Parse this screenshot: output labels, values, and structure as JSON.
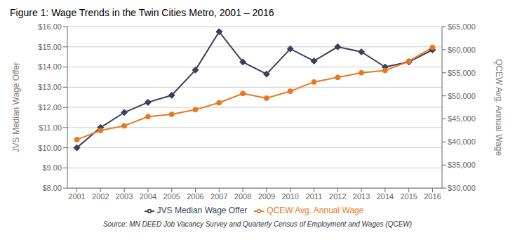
{
  "chart_data": {
    "type": "line",
    "title": "Figure 1: Wage Trends in the Twin Cities Metro, 2001 – 2016",
    "annotations": [
      "Source: MN DEED Job Vacancy Survey and Quarterly Census of Employment and Wages (QCEW)"
    ],
    "x": [
      2001,
      2002,
      2003,
      2004,
      2005,
      2006,
      2007,
      2008,
      2009,
      2010,
      2011,
      2012,
      2013,
      2014,
      2015,
      2016
    ],
    "xlim": [
      2000.6,
      2016.4
    ],
    "xticks": [
      2001,
      2002,
      2003,
      2004,
      2005,
      2006,
      2007,
      2008,
      2009,
      2010,
      2011,
      2012,
      2013,
      2014,
      2015,
      2016
    ],
    "ylabel": "JVS Median Wage Offer",
    "y2label": "QCEW Avg. Annual Wage",
    "ylim": [
      8.0,
      16.0
    ],
    "yticks": [
      {
        "value": 8.0,
        "label": "$8.00"
      },
      {
        "value": 9.0,
        "label": "$9.00"
      },
      {
        "value": 10.0,
        "label": "$10.00"
      },
      {
        "value": 11.0,
        "label": "$11.00"
      },
      {
        "value": 12.0,
        "label": "$12.00"
      },
      {
        "value": 13.0,
        "label": "$13.00"
      },
      {
        "value": 14.0,
        "label": "$14.00"
      },
      {
        "value": 15.0,
        "label": "$15.00"
      },
      {
        "value": 16.0,
        "label": "$16.00"
      }
    ],
    "y2lim": [
      30000,
      65000
    ],
    "y2ticks": [
      {
        "value": 30000,
        "label": "$30,000"
      },
      {
        "value": 35000,
        "label": "$35,000"
      },
      {
        "value": 40000,
        "label": "$40,000"
      },
      {
        "value": 45000,
        "label": "$45,000"
      },
      {
        "value": 50000,
        "label": "$50,000"
      },
      {
        "value": 55000,
        "label": "$55,000"
      },
      {
        "value": 60000,
        "label": "$60,000"
      },
      {
        "value": 65000,
        "label": "$65,000"
      }
    ],
    "grid": true,
    "legend": "bottom",
    "series": [
      {
        "name": "JVS Median Wage Offer",
        "color": "#3A3F5C",
        "marker": "diamond",
        "values": [
          10.0,
          11.0,
          11.75,
          12.25,
          12.6,
          13.85,
          15.75,
          14.25,
          13.65,
          14.9,
          14.3,
          15.0,
          14.75,
          14.0,
          14.25,
          14.85
        ]
      },
      {
        "name": "QCEW Avg. Annual Wage",
        "color": "#E87722",
        "marker": "circle",
        "axis": "y2",
        "values": [
          40500,
          42500,
          43500,
          45500,
          46000,
          47000,
          48500,
          50500,
          49500,
          51000,
          53000,
          54000,
          55000,
          55500,
          57500,
          60500
        ]
      }
    ]
  }
}
